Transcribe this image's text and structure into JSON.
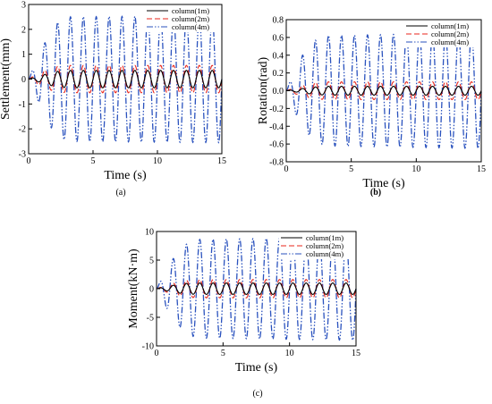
{
  "figure": {
    "panel_labels": [
      "(a)",
      "(b)",
      "(c)"
    ]
  },
  "series_styles": [
    {
      "name": "column(1m)",
      "color": "#000000",
      "dash": "solid"
    },
    {
      "name": "column(2m)",
      "color": "#e8251b",
      "dash": "dashed"
    },
    {
      "name": "column(4m)",
      "color": "#2a52be",
      "dash": "dash-dot-dot"
    }
  ],
  "chart_data": [
    {
      "type": "line",
      "id": "a",
      "xlabel": "Time (s)",
      "ylabel": "Settlement(mm)",
      "xlim": [
        0,
        15
      ],
      "ylim": [
        -3,
        3
      ],
      "xticks": [
        0,
        5,
        10,
        15
      ],
      "yticks": [
        -3,
        -2,
        -1,
        0,
        1,
        2,
        3
      ],
      "legend_position": "top-right",
      "grid": false,
      "period": 1.0,
      "series": [
        {
          "name": "column(1m)",
          "envelope": {
            "t": [
              0,
              1,
              2,
              3,
              15
            ],
            "amplitude": [
              0,
              0.15,
              0.3,
              0.35,
              0.35
            ]
          }
        },
        {
          "name": "column(2m)",
          "envelope": {
            "t": [
              0,
              1,
              2,
              3,
              15
            ],
            "amplitude": [
              0,
              0.3,
              0.5,
              0.55,
              0.55
            ]
          }
        },
        {
          "name": "column(4m)",
          "envelope": {
            "t": [
              0,
              1,
              2,
              3,
              15
            ],
            "amplitude": [
              0,
              1.2,
              2.2,
              2.5,
              2.55
            ]
          }
        }
      ]
    },
    {
      "type": "line",
      "id": "b",
      "xlabel": "Time (s)",
      "ylabel": "Rotation(rad)",
      "xlim": [
        0,
        15
      ],
      "ylim": [
        -0.8,
        0.8
      ],
      "xticks": [
        0,
        5,
        10,
        15
      ],
      "yticks": [
        -0.8,
        -0.6,
        -0.4,
        -0.2,
        0.0,
        0.2,
        0.4,
        0.6,
        0.8
      ],
      "legend_position": "top-right",
      "grid": false,
      "period": 1.0,
      "series": [
        {
          "name": "column(1m)",
          "envelope": {
            "t": [
              0,
              1,
              2,
              3,
              15
            ],
            "amplitude": [
              0,
              0.02,
              0.04,
              0.05,
              0.05
            ]
          }
        },
        {
          "name": "column(2m)",
          "envelope": {
            "t": [
              0,
              1,
              2,
              3,
              15
            ],
            "amplitude": [
              0,
              0.05,
              0.09,
              0.1,
              0.1
            ]
          }
        },
        {
          "name": "column(4m)",
          "envelope": {
            "t": [
              0,
              1,
              2,
              3,
              15
            ],
            "amplitude": [
              0,
              0.35,
              0.55,
              0.62,
              0.65
            ]
          }
        }
      ]
    },
    {
      "type": "line",
      "id": "c",
      "xlabel": "Time (s)",
      "ylabel": "Moment(kN·m)",
      "xlim": [
        0,
        15
      ],
      "ylim": [
        -10,
        10
      ],
      "xticks": [
        0,
        5,
        10,
        15
      ],
      "yticks": [
        -10,
        -5,
        0,
        5,
        10
      ],
      "legend_position": "top-right",
      "grid": false,
      "period": 1.0,
      "series": [
        {
          "name": "column(1m)",
          "envelope": {
            "t": [
              0,
              1,
              2,
              3,
              15
            ],
            "amplitude": [
              0,
              0.5,
              0.9,
              1.0,
              1.0
            ]
          }
        },
        {
          "name": "column(2m)",
          "envelope": {
            "t": [
              0,
              1,
              2,
              3,
              15
            ],
            "amplitude": [
              0,
              0.8,
              1.4,
              1.6,
              1.6
            ]
          }
        },
        {
          "name": "column(4m)",
          "envelope": {
            "t": [
              0,
              1,
              2,
              3,
              15
            ],
            "amplitude": [
              0,
              4.5,
              7.5,
              8.6,
              9.0
            ]
          }
        }
      ]
    }
  ]
}
